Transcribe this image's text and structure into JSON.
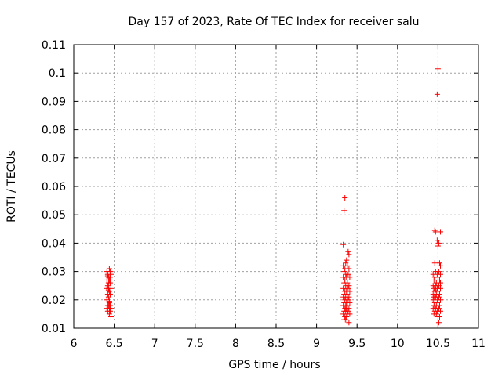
{
  "chart_data": {
    "type": "scatter",
    "title": "Day 157 of 2023, Rate Of TEC Index for receiver salu",
    "xlabel": "GPS time / hours",
    "ylabel": "ROTI / TECUs",
    "xlim": [
      6,
      11
    ],
    "ylim": [
      0.01,
      0.11
    ],
    "grid": true,
    "marker": "plus",
    "color": "#ff0000",
    "x_ticks": [
      "6",
      "6.5",
      "7",
      "7.5",
      "8",
      "8.5",
      "9",
      "9.5",
      "10",
      "10.5",
      "11"
    ],
    "y_ticks": [
      "0.01",
      "0.02",
      "0.03",
      "0.04",
      "0.05",
      "0.06",
      "0.07",
      "0.08",
      "0.09",
      "0.1",
      "0.11"
    ],
    "series": [
      {
        "points": [
          [
            6.41,
            0.03
          ],
          [
            6.42,
            0.029
          ],
          [
            6.43,
            0.028
          ],
          [
            6.44,
            0.031
          ],
          [
            6.45,
            0.03
          ],
          [
            6.46,
            0.029
          ],
          [
            6.41,
            0.027
          ],
          [
            6.43,
            0.026
          ],
          [
            6.44,
            0.027
          ],
          [
            6.42,
            0.025
          ],
          [
            6.45,
            0.026
          ],
          [
            6.43,
            0.024
          ],
          [
            6.41,
            0.024
          ],
          [
            6.44,
            0.023
          ],
          [
            6.46,
            0.024
          ],
          [
            6.42,
            0.022
          ],
          [
            6.43,
            0.021
          ],
          [
            6.45,
            0.022
          ],
          [
            6.41,
            0.02
          ],
          [
            6.44,
            0.019
          ],
          [
            6.42,
            0.018
          ],
          [
            6.43,
            0.018
          ],
          [
            6.45,
            0.018
          ],
          [
            6.41,
            0.017
          ],
          [
            6.44,
            0.017
          ],
          [
            6.46,
            0.017
          ],
          [
            6.42,
            0.016
          ],
          [
            6.45,
            0.016
          ],
          [
            6.44,
            0.015
          ],
          [
            6.46,
            0.014
          ],
          [
            6.43,
            0.0235
          ],
          [
            6.45,
            0.028
          ],
          [
            6.42,
            0.0285
          ],
          [
            6.44,
            0.0195
          ],
          [
            9.35,
            0.056
          ],
          [
            9.34,
            0.0515
          ],
          [
            9.33,
            0.0395
          ],
          [
            9.39,
            0.037
          ],
          [
            9.4,
            0.036
          ],
          [
            9.37,
            0.034
          ],
          [
            9.36,
            0.033
          ],
          [
            9.38,
            0.032
          ],
          [
            9.33,
            0.032
          ],
          [
            9.35,
            0.031
          ],
          [
            9.4,
            0.031
          ],
          [
            9.34,
            0.03
          ],
          [
            9.36,
            0.029
          ],
          [
            9.39,
            0.029
          ],
          [
            9.33,
            0.028
          ],
          [
            9.37,
            0.028
          ],
          [
            9.41,
            0.028
          ],
          [
            9.35,
            0.027
          ],
          [
            9.38,
            0.026
          ],
          [
            9.34,
            0.026
          ],
          [
            9.4,
            0.025
          ],
          [
            9.36,
            0.025
          ],
          [
            9.33,
            0.024
          ],
          [
            9.39,
            0.024
          ],
          [
            9.37,
            0.023
          ],
          [
            9.35,
            0.023
          ],
          [
            9.41,
            0.023
          ],
          [
            9.34,
            0.022
          ],
          [
            9.38,
            0.022
          ],
          [
            9.36,
            0.021
          ],
          [
            9.33,
            0.021
          ],
          [
            9.4,
            0.021
          ],
          [
            9.35,
            0.02
          ],
          [
            9.39,
            0.02
          ],
          [
            9.37,
            0.019
          ],
          [
            9.34,
            0.019
          ],
          [
            9.41,
            0.019
          ],
          [
            9.36,
            0.018
          ],
          [
            9.38,
            0.018
          ],
          [
            9.33,
            0.018
          ],
          [
            9.35,
            0.017
          ],
          [
            9.4,
            0.017
          ],
          [
            9.37,
            0.017
          ],
          [
            9.34,
            0.016
          ],
          [
            9.39,
            0.016
          ],
          [
            9.36,
            0.016
          ],
          [
            9.33,
            0.015
          ],
          [
            9.38,
            0.015
          ],
          [
            9.41,
            0.015
          ],
          [
            9.35,
            0.014
          ],
          [
            9.37,
            0.014
          ],
          [
            9.34,
            0.013
          ],
          [
            9.36,
            0.013
          ],
          [
            9.4,
            0.012
          ],
          [
            10.5,
            0.1015
          ],
          [
            10.49,
            0.0925
          ],
          [
            10.46,
            0.0445
          ],
          [
            10.47,
            0.044
          ],
          [
            10.53,
            0.044
          ],
          [
            10.49,
            0.041
          ],
          [
            10.51,
            0.04
          ],
          [
            10.5,
            0.039
          ],
          [
            10.46,
            0.033
          ],
          [
            10.52,
            0.033
          ],
          [
            10.53,
            0.032
          ],
          [
            10.47,
            0.03
          ],
          [
            10.51,
            0.03
          ],
          [
            10.44,
            0.029
          ],
          [
            10.49,
            0.029
          ],
          [
            10.53,
            0.029
          ],
          [
            10.46,
            0.028
          ],
          [
            10.5,
            0.028
          ],
          [
            10.45,
            0.027
          ],
          [
            10.52,
            0.027
          ],
          [
            10.48,
            0.026
          ],
          [
            10.53,
            0.026
          ],
          [
            10.44,
            0.025
          ],
          [
            10.47,
            0.025
          ],
          [
            10.51,
            0.025
          ],
          [
            10.45,
            0.024
          ],
          [
            10.49,
            0.024
          ],
          [
            10.53,
            0.024
          ],
          [
            10.46,
            0.023
          ],
          [
            10.5,
            0.023
          ],
          [
            10.44,
            0.022
          ],
          [
            10.48,
            0.022
          ],
          [
            10.52,
            0.022
          ],
          [
            10.45,
            0.021
          ],
          [
            10.47,
            0.021
          ],
          [
            10.51,
            0.021
          ],
          [
            10.44,
            0.02
          ],
          [
            10.49,
            0.02
          ],
          [
            10.53,
            0.02
          ],
          [
            10.46,
            0.019
          ],
          [
            10.5,
            0.019
          ],
          [
            10.45,
            0.018
          ],
          [
            10.48,
            0.018
          ],
          [
            10.52,
            0.018
          ],
          [
            10.44,
            0.017
          ],
          [
            10.47,
            0.017
          ],
          [
            10.51,
            0.017
          ],
          [
            10.46,
            0.016
          ],
          [
            10.49,
            0.016
          ],
          [
            10.53,
            0.016
          ],
          [
            10.45,
            0.015
          ],
          [
            10.48,
            0.015
          ],
          [
            10.5,
            0.014
          ],
          [
            10.52,
            0.014
          ],
          [
            10.51,
            0.012
          ],
          [
            10.47,
            0.0235
          ]
        ]
      }
    ]
  }
}
